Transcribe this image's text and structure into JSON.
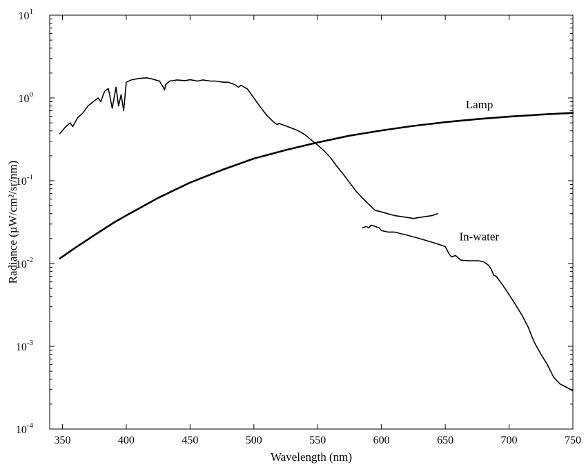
{
  "chart_data": {
    "type": "line",
    "title": "",
    "xlabel": "Wavelength (nm)",
    "ylabel": "Radiance (µW/cm²/sr/nm)",
    "xlim": [
      340,
      750
    ],
    "ylim": [
      0.0001,
      10
    ],
    "yscale": "log",
    "grid": false,
    "x_ticks": [
      350,
      400,
      450,
      500,
      550,
      600,
      650,
      700,
      750
    ],
    "y_ticks": [
      {
        "value": 0.0001,
        "base": "10",
        "exp": "-4"
      },
      {
        "value": 0.001,
        "base": "10",
        "exp": "-3"
      },
      {
        "value": 0.01,
        "base": "10",
        "exp": "-2"
      },
      {
        "value": 0.1,
        "base": "10",
        "exp": "-1"
      },
      {
        "value": 1,
        "base": "10",
        "exp": "0"
      },
      {
        "value": 10,
        "base": "10",
        "exp": "1"
      }
    ],
    "series": [
      {
        "name": "Lamp",
        "stroke_width": 2.6,
        "x": [
          348,
          360,
          375,
          390,
          400,
          425,
          450,
          475,
          500,
          525,
          550,
          575,
          600,
          625,
          650,
          675,
          700,
          725,
          750
        ],
        "y": [
          0.0115,
          0.0155,
          0.022,
          0.031,
          0.038,
          0.062,
          0.095,
          0.135,
          0.185,
          0.235,
          0.29,
          0.35,
          0.405,
          0.46,
          0.51,
          0.555,
          0.595,
          0.63,
          0.66
        ]
      },
      {
        "name": "",
        "stroke_width": 1.6,
        "x": [
          348,
          352,
          356,
          358,
          362,
          366,
          370,
          374,
          378,
          380,
          383,
          386,
          389,
          392,
          394,
          396,
          398,
          400,
          404,
          410,
          416,
          420,
          426,
          429,
          430,
          431,
          434,
          440,
          446,
          450,
          456,
          460,
          466,
          470,
          476,
          480,
          485,
          488,
          490,
          495,
          500,
          505,
          510,
          515,
          518,
          520,
          525,
          530,
          535,
          540,
          545,
          550,
          555,
          560,
          565,
          570,
          575,
          580,
          585,
          590,
          595,
          600,
          605,
          610,
          615,
          620,
          625,
          630,
          635,
          640,
          644
        ],
        "y": [
          0.37,
          0.44,
          0.5,
          0.45,
          0.58,
          0.66,
          0.8,
          0.9,
          1.0,
          0.9,
          1.2,
          1.3,
          0.75,
          1.35,
          0.8,
          1.1,
          0.7,
          1.55,
          1.65,
          1.72,
          1.75,
          1.7,
          1.6,
          1.35,
          1.25,
          1.45,
          1.6,
          1.65,
          1.62,
          1.66,
          1.6,
          1.65,
          1.6,
          1.6,
          1.55,
          1.55,
          1.45,
          1.35,
          1.42,
          1.28,
          1.0,
          0.78,
          0.62,
          0.52,
          0.48,
          0.49,
          0.46,
          0.43,
          0.4,
          0.36,
          0.31,
          0.27,
          0.23,
          0.19,
          0.15,
          0.12,
          0.095,
          0.075,
          0.062,
          0.052,
          0.044,
          0.042,
          0.04,
          0.038,
          0.037,
          0.036,
          0.035,
          0.036,
          0.037,
          0.038,
          0.04
        ]
      },
      {
        "name": "In-water",
        "stroke_width": 1.6,
        "x": [
          585,
          588,
          590,
          592,
          595,
          598,
          600,
          605,
          610,
          620,
          630,
          640,
          645,
          650,
          653,
          655,
          658,
          662,
          668,
          672,
          676,
          680,
          684,
          686,
          688,
          690,
          695,
          700,
          705,
          710,
          715,
          718,
          720,
          725,
          730,
          735,
          740,
          745,
          750
        ],
        "y": [
          0.027,
          0.028,
          0.027,
          0.029,
          0.028,
          0.027,
          0.025,
          0.024,
          0.024,
          0.022,
          0.02,
          0.018,
          0.017,
          0.016,
          0.013,
          0.012,
          0.0125,
          0.011,
          0.0108,
          0.0108,
          0.0108,
          0.0105,
          0.0095,
          0.0085,
          0.0072,
          0.007,
          0.0055,
          0.0042,
          0.0032,
          0.0024,
          0.0017,
          0.0013,
          0.0011,
          0.0008,
          0.0006,
          0.00042,
          0.00035,
          0.00032,
          0.00029
        ]
      }
    ],
    "annotations": [
      {
        "text": "Lamp",
        "x": 666,
        "y": 0.75
      },
      {
        "text": "In-water",
        "x": 661,
        "y": 0.019
      }
    ]
  }
}
